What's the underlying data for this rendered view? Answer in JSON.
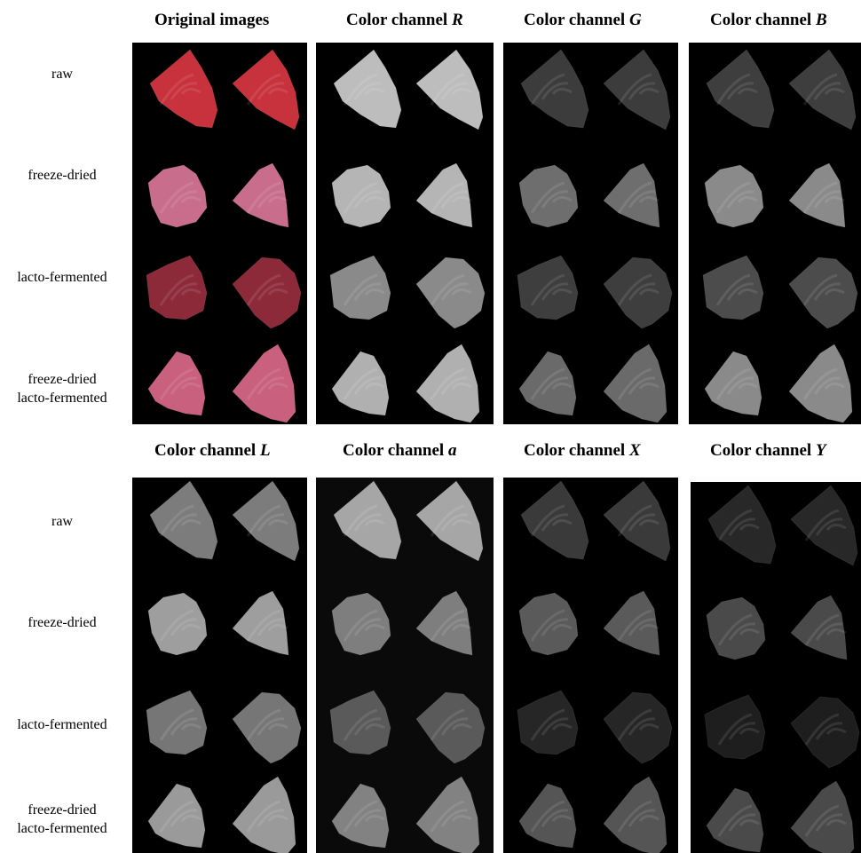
{
  "top": {
    "headers": [
      {
        "prefix": "Original images",
        "italic": ""
      },
      {
        "prefix": "Color channel ",
        "italic": "R"
      },
      {
        "prefix": "Color channel ",
        "italic": "G"
      },
      {
        "prefix": "Color channel ",
        "italic": "B"
      }
    ],
    "rows": [
      {
        "line1": "raw",
        "line2": ""
      },
      {
        "line1": "freeze-dried",
        "line2": ""
      },
      {
        "line1": "lacto-fermented",
        "line2": ""
      },
      {
        "line1": "freeze-dried",
        "line2": "lacto-fermented"
      }
    ]
  },
  "bottom": {
    "headers": [
      {
        "prefix": "Color channel ",
        "italic": "L"
      },
      {
        "prefix": "Color channel ",
        "italic": "a"
      },
      {
        "prefix": "Color channel ",
        "italic": "X"
      },
      {
        "prefix": "Color channel ",
        "italic": "Y"
      }
    ],
    "rows": [
      {
        "line1": "raw",
        "line2": ""
      },
      {
        "line1": "freeze-dried",
        "line2": ""
      },
      {
        "line1": "lacto-fermented",
        "line2": ""
      },
      {
        "line1": "freeze-dried",
        "line2": "lacto-fermented"
      }
    ]
  },
  "colors": {
    "raw": "#c8323c",
    "freeze_dried": "#c86e8c",
    "lacto_fermented": "#8c2a3a",
    "fd_lacto": "#c8607e"
  }
}
